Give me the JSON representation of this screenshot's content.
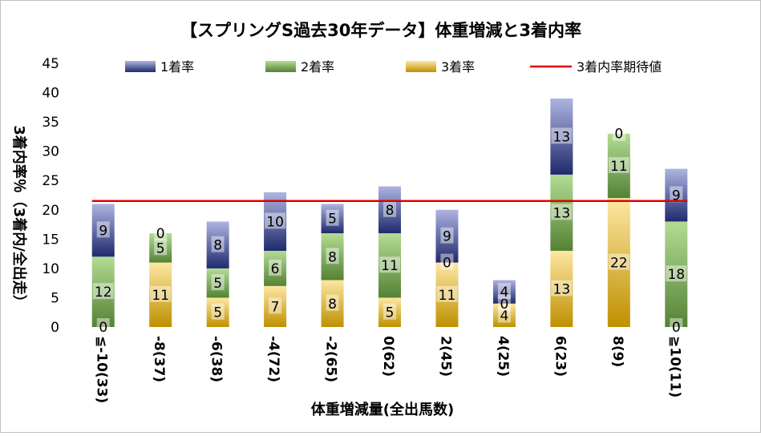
{
  "chart_data": {
    "type": "bar",
    "stacked": true,
    "title": "【スプリングS過去30年データ】体重増減と3着内率",
    "xlabel": "体重増減量(全出馬数)",
    "ylabel": "3着内率％（3着内/全出走）",
    "ylim": [
      0,
      45
    ],
    "yticks": [
      "0",
      "5",
      "10",
      "15",
      "20",
      "25",
      "30",
      "35",
      "40",
      "45"
    ],
    "categories": [
      "≦-10(33)",
      "-8(37)",
      "-6(38)",
      "-4(72)",
      "-2(65)",
      "0(62)",
      "2(45)",
      "4(25)",
      "6(23)",
      "8(9)",
      "≧10(11)"
    ],
    "series": [
      {
        "name": "3着率",
        "values": [
          0,
          11,
          5,
          7,
          8,
          5,
          11,
          4,
          13,
          22,
          0
        ],
        "labels": [
          "0",
          "11",
          "5",
          "7",
          "8",
          "5",
          "11",
          "4",
          "13",
          "22",
          "0"
        ],
        "color_light": "#fde7a3",
        "color_dark": "#bf9000"
      },
      {
        "name": "2着率",
        "values": [
          12,
          5,
          5,
          6,
          8,
          11,
          0,
          0,
          13,
          11,
          18
        ],
        "labels": [
          "12",
          "5",
          "5",
          "6",
          "8",
          "11",
          "0",
          "0",
          "13",
          "11",
          "18"
        ],
        "color_light": "#b4dc94",
        "color_dark": "#548235"
      },
      {
        "name": "1着率",
        "values": [
          9,
          0,
          8,
          10,
          5,
          8,
          9,
          4,
          13,
          0,
          9
        ],
        "labels": [
          "9",
          "0",
          "8",
          "10",
          "5",
          "8",
          "9",
          "4",
          "13",
          "0",
          "9"
        ],
        "color_light": "#aeb4e0",
        "color_dark": "#1f2a6e"
      }
    ],
    "reference_line": {
      "name": "3着内率期待値",
      "value": 21.5,
      "color": "#e00000"
    },
    "legend_position": "top",
    "grid": false
  }
}
